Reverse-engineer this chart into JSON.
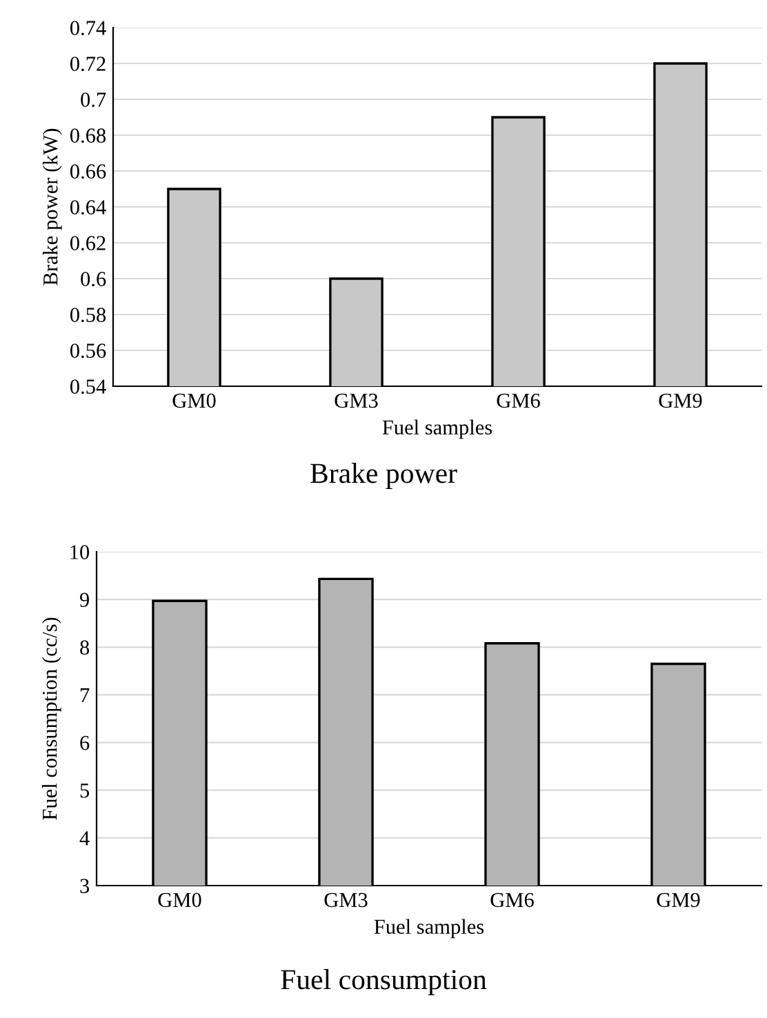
{
  "chart_data": [
    {
      "type": "bar",
      "title": "Brake power",
      "xlabel": "Fuel samples",
      "ylabel": "Brake power (kW)",
      "categories": [
        "GM0",
        "GM3",
        "GM6",
        "GM9"
      ],
      "values": [
        0.65,
        0.6,
        0.69,
        0.72
      ],
      "color": "#c8c8c8",
      "ylim": [
        0.54,
        0.74
      ],
      "yticks": [
        {
          "value": 0.54,
          "label": "0.54"
        },
        {
          "value": 0.56,
          "label": "0.56"
        },
        {
          "value": 0.58,
          "label": "0.58"
        },
        {
          "value": 0.6,
          "label": "0.6"
        },
        {
          "value": 0.62,
          "label": "0.62"
        },
        {
          "value": 0.64,
          "label": "0.64"
        },
        {
          "value": 0.66,
          "label": "0.66"
        },
        {
          "value": 0.68,
          "label": "0.68"
        },
        {
          "value": 0.7,
          "label": "0.7"
        },
        {
          "value": 0.72,
          "label": "0.72"
        },
        {
          "value": 0.74,
          "label": "0.74"
        }
      ],
      "grid": "y"
    },
    {
      "type": "bar",
      "title": "Fuel consumption",
      "xlabel": "Fuel samples",
      "ylabel": "Fuel consumption (cc/s)",
      "categories": [
        "GM0",
        "GM3",
        "GM6",
        "GM9"
      ],
      "values": [
        8.97,
        9.43,
        8.08,
        7.65
      ],
      "color": "#b4b4b4",
      "ylim": [
        3,
        10
      ],
      "yticks": [
        3,
        4,
        5,
        6,
        7,
        8,
        9,
        10
      ],
      "grid": "y"
    }
  ]
}
